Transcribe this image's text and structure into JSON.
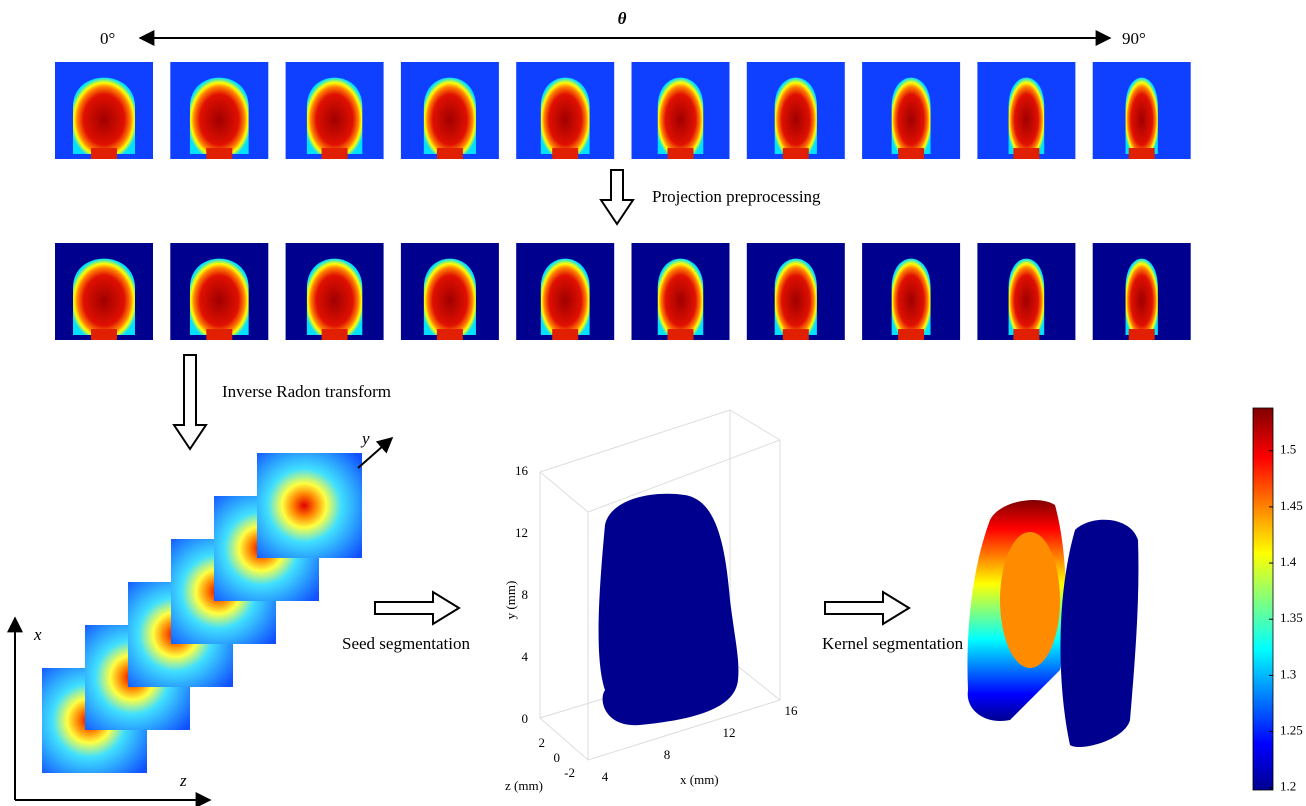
{
  "header": {
    "angle_symbol": "θ",
    "start_angle": "0°",
    "end_angle": "90°"
  },
  "steps": {
    "projection": "Projection preprocessing",
    "radon": "Inverse Radon transform",
    "seed": "Seed segmentation",
    "kernel": "Kernel segmentation"
  },
  "stack_axes": {
    "x": "x",
    "y": "y",
    "z": "z"
  },
  "plot3d": {
    "x_label": "x (mm)",
    "y_label": "y (mm)",
    "z_label": "z (mm)",
    "xticks": [
      4,
      8,
      12,
      16
    ],
    "yticks": [
      0,
      4,
      8,
      12,
      16
    ],
    "zticks": [
      2,
      0,
      -2
    ]
  },
  "colorbar": {
    "clim": [
      1.198,
      1.538
    ],
    "ticks": [
      1.2,
      1.25,
      1.3,
      1.35,
      1.4,
      1.45,
      1.5
    ]
  }
}
